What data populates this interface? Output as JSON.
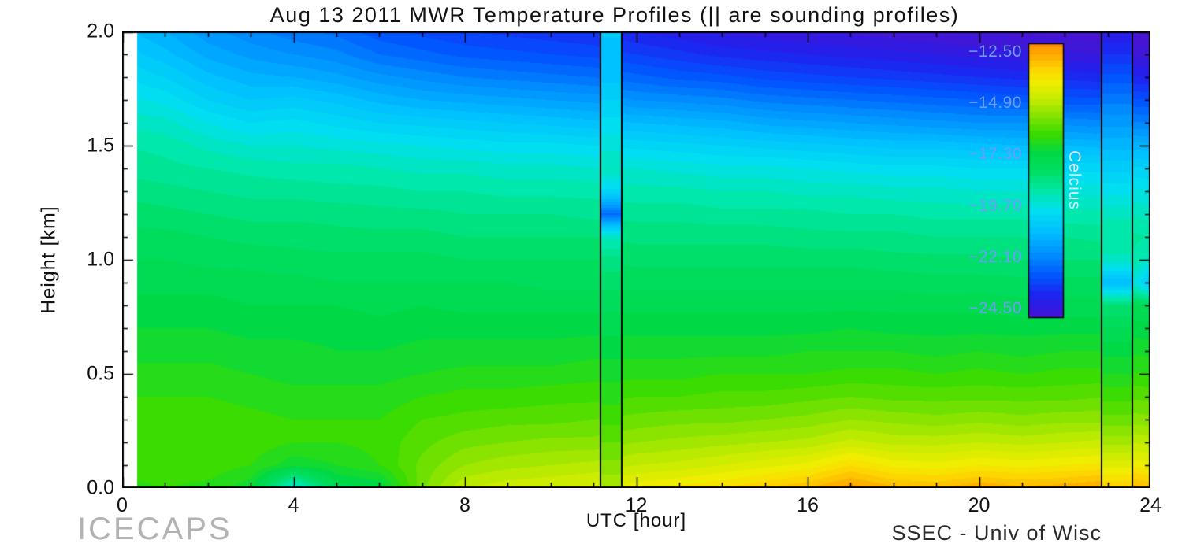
{
  "footer": {
    "left": "ICECAPS",
    "right": "SSEC - Univ of Wisc"
  },
  "chart_data": {
    "type": "heatmap",
    "title": "Aug 13 2011 MWR Temperature Profiles (|| are sounding profiles)",
    "xlabel": "UTC [hour]",
    "ylabel": "Height [km]",
    "xlim": [
      0,
      24
    ],
    "ylim": [
      0,
      2
    ],
    "zlim": [
      -24.9,
      -12.1
    ],
    "x_data_start": 0.35,
    "contour_interval": 0.3,
    "grid": false,
    "x_ticks": [
      {
        "label": "0",
        "value": 0
      },
      {
        "label": "4",
        "value": 4
      },
      {
        "label": "8",
        "value": 8
      },
      {
        "label": "12",
        "value": 12
      },
      {
        "label": "16",
        "value": 16
      },
      {
        "label": "20",
        "value": 20
      },
      {
        "label": "24",
        "value": 24
      }
    ],
    "x_tick_minor_step": 1,
    "y_ticks": [
      {
        "label": "0.0",
        "value": 0
      },
      {
        "label": "0.5",
        "value": 0.5
      },
      {
        "label": "1.0",
        "value": 1
      },
      {
        "label": "1.5",
        "value": 1.5
      },
      {
        "label": "2.0",
        "value": 2
      }
    ],
    "y_tick_minor_step": 0.1,
    "colorbar": {
      "label": "Celcius",
      "tick_label_color": "#6f9bff",
      "label_color": "#e2ecff",
      "ticks": [
        {
          "label": "−12.50",
          "value": -12.5
        },
        {
          "label": "−14.90",
          "value": -14.9
        },
        {
          "label": "−17.30",
          "value": -17.3
        },
        {
          "label": "−19.70",
          "value": -19.7
        },
        {
          "label": "−22.10",
          "value": -22.1
        },
        {
          "label": "−24.50",
          "value": -24.5
        }
      ]
    },
    "colormap_stops": [
      [
        0.0,
        "#4614d2"
      ],
      [
        0.07,
        "#2020ee"
      ],
      [
        0.15,
        "#0055ff"
      ],
      [
        0.23,
        "#0090ff"
      ],
      [
        0.31,
        "#00bfff"
      ],
      [
        0.39,
        "#00e0f0"
      ],
      [
        0.46,
        "#00e8a8"
      ],
      [
        0.53,
        "#00df66"
      ],
      [
        0.6,
        "#00d944"
      ],
      [
        0.67,
        "#3cdc00"
      ],
      [
        0.74,
        "#8ce400"
      ],
      [
        0.8,
        "#c8ec00"
      ],
      [
        0.86,
        "#f2ee00"
      ],
      [
        0.91,
        "#ffd200"
      ],
      [
        0.96,
        "#ffa800"
      ],
      [
        1.0,
        "#ff8c00"
      ]
    ],
    "x_hours": [
      0,
      1,
      2,
      3,
      4,
      5,
      6,
      7,
      8,
      9,
      10,
      11,
      12,
      13,
      14,
      15,
      16,
      17,
      18,
      19,
      20,
      21,
      22,
      23,
      24
    ],
    "heights_km": [
      0,
      0.1,
      0.2,
      0.3,
      0.4,
      0.5,
      0.6,
      0.7,
      0.8,
      0.9,
      1.0,
      1.1,
      1.2,
      1.3,
      1.4,
      1.5,
      1.6,
      1.7,
      1.8,
      1.9,
      2.0
    ],
    "temps_by_hour": [
      [
        -16.6,
        -16.4,
        -16.3,
        -16.3,
        -16.5,
        -16.7,
        -16.9,
        -17.1,
        -17.3,
        -17.5,
        -17.7,
        -17.9,
        -18.1,
        -18.4,
        -18.7,
        -18.9,
        -19.3,
        -19.7,
        -20.1,
        -20.5,
        -20.9
      ],
      [
        -16.5,
        -16.3,
        -16.2,
        -16.3,
        -16.5,
        -16.7,
        -16.9,
        -17.1,
        -17.3,
        -17.5,
        -17.7,
        -17.9,
        -18.2,
        -18.5,
        -18.8,
        -19.0,
        -19.4,
        -19.9,
        -20.4,
        -20.9,
        -21.3
      ],
      [
        -16.6,
        -16.3,
        -16.2,
        -16.3,
        -16.5,
        -16.7,
        -16.9,
        -17.1,
        -17.3,
        -17.5,
        -17.8,
        -18.0,
        -18.3,
        -18.6,
        -18.9,
        -19.3,
        -19.8,
        -20.4,
        -20.9,
        -21.4,
        -21.8
      ],
      [
        -17.0,
        -16.5,
        -16.3,
        -16.4,
        -16.6,
        -16.8,
        -17.0,
        -17.2,
        -17.4,
        -17.6,
        -17.8,
        -18.1,
        -18.4,
        -18.7,
        -19.0,
        -19.5,
        -20.1,
        -20.7,
        -21.2,
        -21.7,
        -22.1
      ],
      [
        -19.8,
        -17.0,
        -16.5,
        -16.5,
        -16.7,
        -16.9,
        -17.0,
        -17.2,
        -17.4,
        -17.6,
        -17.9,
        -18.1,
        -18.4,
        -18.7,
        -19.1,
        -19.5,
        -20.0,
        -20.6,
        -21.3,
        -21.9,
        -22.4
      ],
      [
        -17.6,
        -16.8,
        -16.5,
        -16.5,
        -16.7,
        -16.9,
        -17.1,
        -17.2,
        -17.4,
        -17.7,
        -17.9,
        -18.2,
        -18.4,
        -18.8,
        -19.1,
        -19.6,
        -20.2,
        -20.8,
        -21.5,
        -22.1,
        -22.6
      ],
      [
        -17.4,
        -16.5,
        -16.4,
        -16.5,
        -16.7,
        -16.9,
        -17.1,
        -17.3,
        -17.5,
        -17.7,
        -17.9,
        -18.2,
        -18.5,
        -18.8,
        -19.2,
        -19.7,
        -20.4,
        -21.1,
        -21.8,
        -22.5,
        -23.0
      ],
      [
        -15.7,
        -15.8,
        -16.0,
        -16.2,
        -16.5,
        -16.8,
        -17.0,
        -17.2,
        -17.4,
        -17.7,
        -17.9,
        -18.2,
        -18.5,
        -18.9,
        -19.3,
        -19.8,
        -20.5,
        -21.3,
        -22.0,
        -22.7,
        -23.2
      ],
      [
        -14.7,
        -15.3,
        -15.7,
        -16.1,
        -16.4,
        -16.7,
        -17.0,
        -17.2,
        -17.5,
        -17.7,
        -18.0,
        -18.3,
        -18.6,
        -18.9,
        -19.3,
        -19.9,
        -20.6,
        -21.4,
        -22.2,
        -22.9,
        -23.4
      ],
      [
        -14.5,
        -15.1,
        -15.6,
        -16.0,
        -16.4,
        -16.7,
        -17.0,
        -17.2,
        -17.5,
        -17.7,
        -18.0,
        -18.3,
        -18.6,
        -19.0,
        -19.4,
        -20.0,
        -20.7,
        -21.5,
        -22.3,
        -23.0,
        -23.5
      ],
      [
        -14.4,
        -15.0,
        -15.5,
        -16.0,
        -16.3,
        -16.7,
        -17.0,
        -17.2,
        -17.5,
        -17.8,
        -18.0,
        -18.3,
        -18.6,
        -19.0,
        -19.4,
        -20.0,
        -20.8,
        -21.6,
        -22.4,
        -23.1,
        -23.6
      ],
      [
        -14.3,
        -14.9,
        -15.5,
        -15.9,
        -16.3,
        -16.6,
        -16.9,
        -17.2,
        -17.5,
        -17.8,
        -18.0,
        -18.3,
        -18.7,
        -19.0,
        -19.5,
        -20.1,
        -20.9,
        -21.7,
        -22.5,
        -23.2,
        -23.7
      ],
      [
        -13.9,
        -14.7,
        -15.3,
        -15.8,
        -16.2,
        -16.6,
        -16.9,
        -17.2,
        -17.5,
        -17.8,
        -18.1,
        -18.4,
        -18.7,
        -19.1,
        -19.5,
        -20.2,
        -21.0,
        -21.9,
        -22.7,
        -23.4,
        -24.0
      ],
      [
        -13.7,
        -14.6,
        -15.2,
        -15.7,
        -16.2,
        -16.6,
        -16.9,
        -17.2,
        -17.5,
        -17.8,
        -18.1,
        -18.4,
        -18.7,
        -19.1,
        -19.6,
        -20.3,
        -21.1,
        -22.0,
        -22.9,
        -23.6,
        -24.2
      ],
      [
        -13.5,
        -14.4,
        -15.1,
        -15.7,
        -16.1,
        -16.5,
        -16.9,
        -17.2,
        -17.5,
        -17.8,
        -18.1,
        -18.4,
        -18.8,
        -19.2,
        -19.7,
        -20.4,
        -21.2,
        -22.1,
        -23.0,
        -23.8,
        -24.4
      ],
      [
        -13.2,
        -14.2,
        -15.0,
        -15.6,
        -16.1,
        -16.5,
        -16.9,
        -17.2,
        -17.5,
        -17.8,
        -18.1,
        -18.4,
        -18.8,
        -19.2,
        -19.7,
        -20.5,
        -21.4,
        -22.3,
        -23.2,
        -23.9,
        -24.5
      ],
      [
        -12.9,
        -14.0,
        -14.9,
        -15.5,
        -16.0,
        -16.5,
        -16.8,
        -17.2,
        -17.5,
        -17.8,
        -18.1,
        -18.5,
        -18.8,
        -19.3,
        -19.8,
        -20.6,
        -21.5,
        -22.4,
        -23.3,
        -24.0,
        -24.6
      ],
      [
        -12.4,
        -13.5,
        -14.6,
        -15.3,
        -15.9,
        -16.4,
        -16.8,
        -17.1,
        -17.5,
        -17.8,
        -18.1,
        -18.5,
        -18.9,
        -19.3,
        -19.9,
        -20.7,
        -21.6,
        -22.5,
        -23.4,
        -24.1,
        -24.7
      ],
      [
        -12.8,
        -13.9,
        -14.8,
        -15.4,
        -16.0,
        -16.4,
        -16.8,
        -17.2,
        -17.5,
        -17.8,
        -18.2,
        -18.5,
        -18.9,
        -19.4,
        -20.0,
        -20.8,
        -21.7,
        -22.6,
        -23.5,
        -24.2,
        -24.8
      ],
      [
        -12.9,
        -14.0,
        -14.8,
        -15.5,
        -16.0,
        -16.5,
        -16.9,
        -17.2,
        -17.5,
        -17.9,
        -18.2,
        -18.6,
        -19.0,
        -19.4,
        -20.0,
        -20.8,
        -21.8,
        -22.7,
        -23.6,
        -24.3,
        -24.9
      ],
      [
        -12.6,
        -13.8,
        -14.7,
        -15.4,
        -16.0,
        -16.4,
        -16.8,
        -17.2,
        -17.5,
        -17.9,
        -18.2,
        -18.6,
        -19.0,
        -19.5,
        -20.1,
        -20.9,
        -21.9,
        -22.8,
        -23.7,
        -24.4,
        -25.0
      ],
      [
        -12.8,
        -13.9,
        -14.8,
        -15.5,
        -16.0,
        -16.5,
        -16.9,
        -17.2,
        -17.6,
        -17.9,
        -18.3,
        -18.6,
        -19.0,
        -19.5,
        -20.1,
        -21.0,
        -21.9,
        -22.9,
        -23.8,
        -24.5,
        -25.0
      ],
      [
        -12.7,
        -13.8,
        -14.7,
        -15.4,
        -16.0,
        -16.4,
        -16.8,
        -17.2,
        -17.6,
        -17.9,
        -18.3,
        -18.6,
        -19.1,
        -19.6,
        -20.2,
        -21.0,
        -22.0,
        -23.0,
        -23.8,
        -24.5,
        -25.1
      ],
      [
        -12.5,
        -13.7,
        -14.6,
        -15.4,
        -15.9,
        -16.4,
        -16.8,
        -17.2,
        -17.6,
        -17.9,
        -18.3,
        -18.7,
        -19.1,
        -19.6,
        -20.2,
        -21.1,
        -22.1,
        -23.0,
        -23.9,
        -24.6,
        -25.2
      ],
      [
        -12.9,
        -14.0,
        -14.8,
        -15.5,
        -16.0,
        -16.5,
        -16.9,
        -17.3,
        -17.7,
        -20.8,
        -19.4,
        -18.9,
        -19.3,
        -19.8,
        -20.4,
        -21.2,
        -22.2,
        -23.1,
        -24.0,
        -24.7,
        -25.3
      ]
    ],
    "soundings": [
      {
        "utc": 11.5,
        "x_range": [
          11.15,
          11.65
        ],
        "temps": [
          -15.0,
          -15.5,
          -15.9,
          -16.3,
          -16.6,
          -16.9,
          -17.2,
          -17.5,
          -17.8,
          -18.1,
          -18.5,
          -19.3,
          -22.6,
          -20.2,
          -19.2,
          -19.6,
          -20.0,
          -20.4,
          -20.8,
          -21.0,
          -20.6
        ]
      },
      {
        "utc": 23.0,
        "x_range": [
          22.85,
          23.55
        ],
        "temps": [
          -13.2,
          -14.2,
          -15.1,
          -15.8,
          -16.3,
          -16.8,
          -17.2,
          -17.7,
          -18.3,
          -21.0,
          -19.3,
          -18.9,
          -19.3,
          -19.9,
          -20.5,
          -21.1,
          -21.7,
          -22.3,
          -23.0,
          -23.7,
          -24.3
        ]
      }
    ]
  }
}
